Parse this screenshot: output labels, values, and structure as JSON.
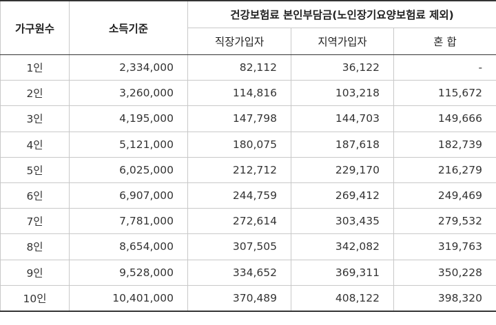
{
  "table": {
    "headers": {
      "household": "가구원수",
      "income": "소득기준",
      "insurance_group": "건강보험료 본인부담금(노인장기요양보험료 제외)",
      "employee": "직장가입자",
      "regional": "지역가입자",
      "mixed": "혼 합"
    },
    "rows": [
      {
        "household": "1인",
        "income": "2,334,000",
        "employee": "82,112",
        "regional": "36,122",
        "mixed": "-"
      },
      {
        "household": "2인",
        "income": "3,260,000",
        "employee": "114,816",
        "regional": "103,218",
        "mixed": "115,672"
      },
      {
        "household": "3인",
        "income": "4,195,000",
        "employee": "147,798",
        "regional": "144,703",
        "mixed": "149,666"
      },
      {
        "household": "4인",
        "income": "5,121,000",
        "employee": "180,075",
        "regional": "187,618",
        "mixed": "182,739"
      },
      {
        "household": "5인",
        "income": "6,025,000",
        "employee": "212,712",
        "regional": "229,170",
        "mixed": "216,279"
      },
      {
        "household": "6인",
        "income": "6,907,000",
        "employee": "244,759",
        "regional": "269,412",
        "mixed": "249,469"
      },
      {
        "household": "7인",
        "income": "7,781,000",
        "employee": "272,614",
        "regional": "303,435",
        "mixed": "279,532"
      },
      {
        "household": "8인",
        "income": "8,654,000",
        "employee": "307,505",
        "regional": "342,082",
        "mixed": "319,763"
      },
      {
        "household": "9인",
        "income": "9,528,000",
        "employee": "334,652",
        "regional": "369,311",
        "mixed": "350,228"
      },
      {
        "household": "10인",
        "income": "10,401,000",
        "employee": "370,489",
        "regional": "408,122",
        "mixed": "398,320"
      }
    ]
  }
}
